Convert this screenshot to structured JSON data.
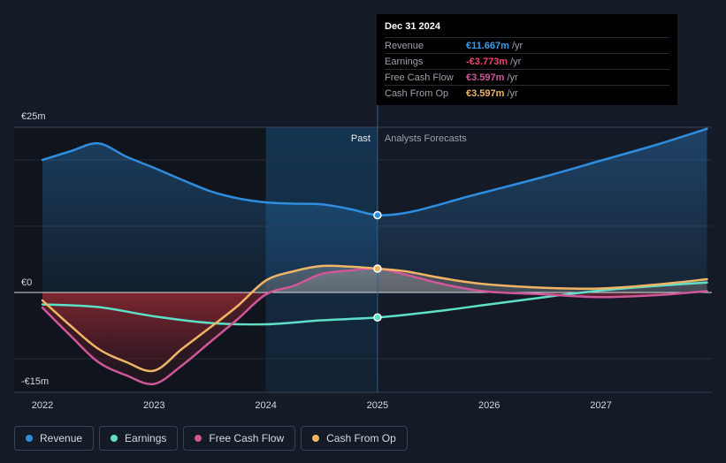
{
  "tooltip": {
    "date": "Dec 31 2024",
    "rows": [
      {
        "label": "Revenue",
        "value": "€11.667m",
        "unit": "/yr",
        "color": "#3b9de8"
      },
      {
        "label": "Earnings",
        "value": "-€3.773m",
        "unit": "/yr",
        "color": "#f0436a"
      },
      {
        "label": "Free Cash Flow",
        "value": "€3.597m",
        "unit": "/yr",
        "color": "#d0569a"
      },
      {
        "label": "Cash From Op",
        "value": "€3.597m",
        "unit": "/yr",
        "color": "#f0b465"
      }
    ]
  },
  "legend": [
    {
      "label": "Revenue",
      "color": "#2e8ddf"
    },
    {
      "label": "Earnings",
      "color": "#5ee0c8"
    },
    {
      "label": "Free Cash Flow",
      "color": "#d0569a"
    },
    {
      "label": "Cash From Op",
      "color": "#f0b465"
    }
  ],
  "chart_data": {
    "type": "line",
    "title": "",
    "y_tick_labels": [
      "€25m",
      "€0",
      "-€15m"
    ],
    "ylim": [
      -15,
      25
    ],
    "xlim": [
      2021.9,
      2027.95
    ],
    "x_ticks": [
      2022,
      2023,
      2024,
      2025,
      2026,
      2027
    ],
    "x_tick_labels": [
      "2022",
      "2023",
      "2024",
      "2025",
      "2026",
      "2027"
    ],
    "past_label": "Past",
    "forecast_label": "Analysts Forecasts",
    "divider_x": 2025.0,
    "highlight_x_range": [
      2024.0,
      2025.0
    ],
    "series": [
      {
        "name": "Revenue",
        "color": "#2e8ddf",
        "fill": true,
        "points": [
          [
            2022.0,
            20.0
          ],
          [
            2022.25,
            21.3
          ],
          [
            2022.5,
            22.5
          ],
          [
            2022.75,
            20.5
          ],
          [
            2023.0,
            18.8
          ],
          [
            2023.25,
            17.0
          ],
          [
            2023.5,
            15.3
          ],
          [
            2023.75,
            14.2
          ],
          [
            2024.0,
            13.6
          ],
          [
            2024.25,
            13.4
          ],
          [
            2024.5,
            13.3
          ],
          [
            2024.75,
            12.6
          ],
          [
            2025.0,
            11.667
          ],
          [
            2025.25,
            12.0
          ],
          [
            2025.5,
            13.0
          ],
          [
            2025.75,
            14.2
          ],
          [
            2026.0,
            15.3
          ],
          [
            2026.5,
            17.5
          ],
          [
            2027.0,
            19.9
          ],
          [
            2027.5,
            22.3
          ],
          [
            2027.95,
            24.7
          ]
        ]
      },
      {
        "name": "Earnings",
        "color": "#5ee0c8",
        "fill": false,
        "points": [
          [
            2022.0,
            -1.8
          ],
          [
            2022.5,
            -2.2
          ],
          [
            2023.0,
            -3.6
          ],
          [
            2023.5,
            -4.6
          ],
          [
            2024.0,
            -4.8
          ],
          [
            2024.5,
            -4.2
          ],
          [
            2025.0,
            -3.773
          ],
          [
            2025.5,
            -2.9
          ],
          [
            2026.0,
            -1.8
          ],
          [
            2026.5,
            -0.7
          ],
          [
            2027.0,
            0.3
          ],
          [
            2027.5,
            1.0
          ],
          [
            2027.95,
            1.5
          ]
        ]
      },
      {
        "name": "Free Cash Flow",
        "color": "#d0569a",
        "fill": true,
        "points": [
          [
            2022.0,
            -2.3
          ],
          [
            2022.25,
            -6.5
          ],
          [
            2022.5,
            -10.5
          ],
          [
            2022.75,
            -12.5
          ],
          [
            2023.0,
            -13.8
          ],
          [
            2023.25,
            -11.0
          ],
          [
            2023.5,
            -7.5
          ],
          [
            2023.75,
            -4.0
          ],
          [
            2024.0,
            -0.3
          ],
          [
            2024.25,
            1.0
          ],
          [
            2024.5,
            2.8
          ],
          [
            2024.75,
            3.3
          ],
          [
            2025.0,
            3.597
          ],
          [
            2025.25,
            2.7
          ],
          [
            2025.5,
            1.6
          ],
          [
            2025.75,
            0.7
          ],
          [
            2026.0,
            0.1
          ],
          [
            2026.5,
            -0.3
          ],
          [
            2027.0,
            -0.7
          ],
          [
            2027.5,
            -0.4
          ],
          [
            2027.95,
            0.2
          ]
        ]
      },
      {
        "name": "Cash From Op",
        "color": "#f0b465",
        "fill": true,
        "points": [
          [
            2022.0,
            -1.2
          ],
          [
            2022.25,
            -5.0
          ],
          [
            2022.5,
            -8.5
          ],
          [
            2022.75,
            -10.5
          ],
          [
            2023.0,
            -11.8
          ],
          [
            2023.25,
            -8.5
          ],
          [
            2023.5,
            -5.3
          ],
          [
            2023.75,
            -2.0
          ],
          [
            2024.0,
            1.8
          ],
          [
            2024.25,
            3.2
          ],
          [
            2024.5,
            4.0
          ],
          [
            2024.75,
            3.9
          ],
          [
            2025.0,
            3.597
          ],
          [
            2025.25,
            3.2
          ],
          [
            2025.5,
            2.4
          ],
          [
            2025.75,
            1.7
          ],
          [
            2026.0,
            1.2
          ],
          [
            2026.5,
            0.7
          ],
          [
            2027.0,
            0.6
          ],
          [
            2027.5,
            1.2
          ],
          [
            2027.95,
            2.0
          ]
        ]
      }
    ],
    "highlight_points": [
      {
        "series": "Revenue",
        "x": 2025.0,
        "y": 11.667,
        "color": "#2e8ddf"
      },
      {
        "series": "Earnings",
        "x": 2025.0,
        "y": -3.773,
        "color": "#5ee0c8"
      },
      {
        "series": "Cash From Op",
        "x": 2025.0,
        "y": 3.597,
        "color": "#f0b465"
      }
    ]
  }
}
